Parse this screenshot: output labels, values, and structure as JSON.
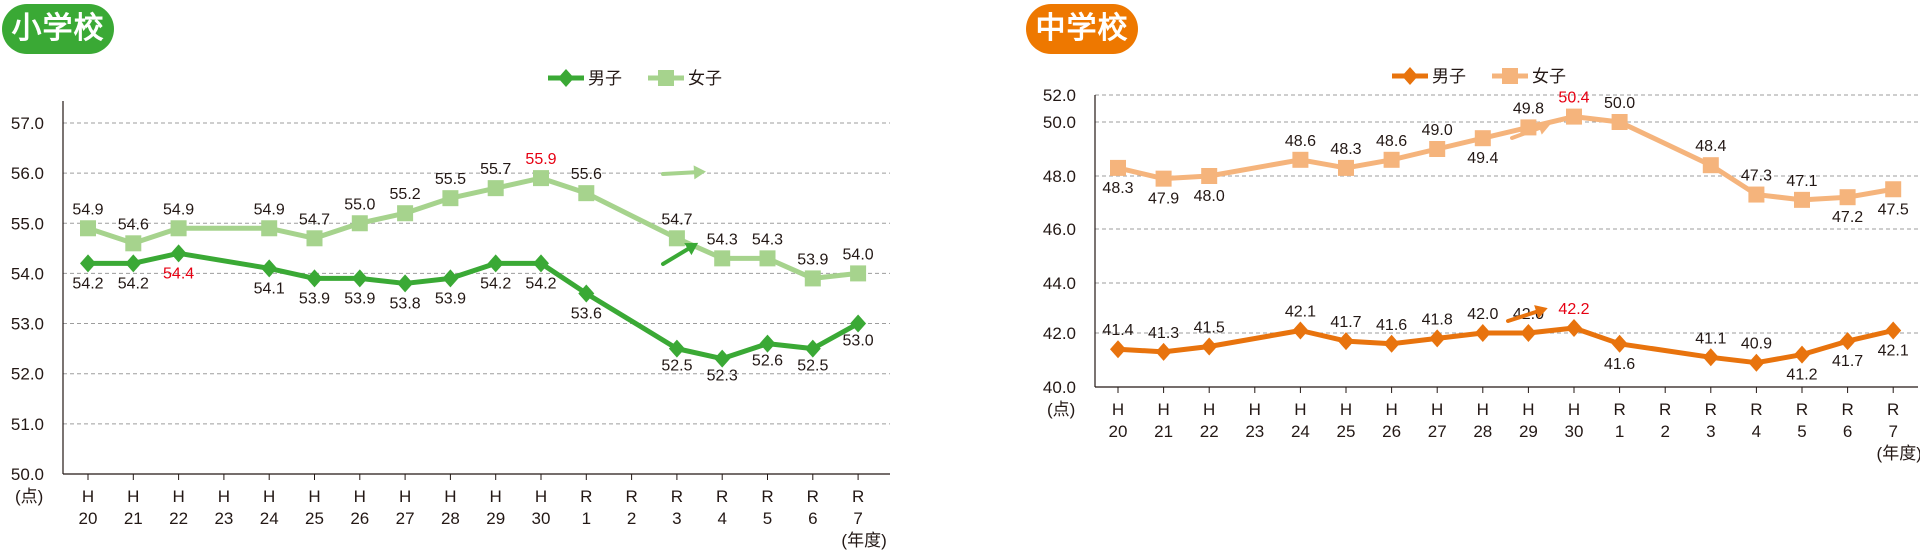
{
  "panels": [
    {
      "id": "elementary",
      "title": "小学校",
      "title_color": "#3aa935",
      "y_unit": "(点)",
      "x_unit": "(年度)",
      "legend": {
        "boys": "男子",
        "girls": "女子"
      },
      "colors": {
        "boys": "#3aa935",
        "girls": "#a6d38d"
      }
    },
    {
      "id": "junior_high",
      "title": "中学校",
      "title_color": "#ee7800",
      "y_unit": "(点)",
      "x_unit": "(年度)",
      "legend": {
        "boys": "男子",
        "girls": "女子"
      },
      "colors": {
        "boys": "#e8730d",
        "girls": "#f5b47c"
      }
    }
  ],
  "chart_data": [
    {
      "type": "line",
      "title": "小学校",
      "xlabel": "(年度)",
      "ylabel": "(点)",
      "categories": [
        "H20",
        "H21",
        "H22",
        "H23",
        "H24",
        "H25",
        "H26",
        "H27",
        "H28",
        "H29",
        "H30",
        "R1",
        "R2",
        "R3",
        "R4",
        "R5",
        "R6",
        "R7"
      ],
      "category_era": [
        "H",
        "H",
        "H",
        "H",
        "H",
        "H",
        "H",
        "H",
        "H",
        "H",
        "H",
        "R",
        "R",
        "R",
        "R",
        "R",
        "R",
        "R"
      ],
      "category_num": [
        "20",
        "21",
        "22",
        "23",
        "24",
        "25",
        "26",
        "27",
        "28",
        "29",
        "30",
        "1",
        "2",
        "3",
        "4",
        "5",
        "6",
        "7"
      ],
      "yticks": [
        "57.0",
        "56.0",
        "55.0",
        "54.0",
        "53.0",
        "52.0",
        "51.0",
        "50.0"
      ],
      "ylim": [
        50.0,
        57.0
      ],
      "grid": true,
      "legend_position": "top-right",
      "series": [
        {
          "name": "男子",
          "values": [
            54.2,
            54.2,
            54.4,
            null,
            54.1,
            53.9,
            53.9,
            53.8,
            53.9,
            54.2,
            54.2,
            53.6,
            null,
            52.5,
            52.3,
            52.6,
            52.5,
            53.0
          ],
          "highlight_index": 2
        },
        {
          "name": "女子",
          "values": [
            54.9,
            54.6,
            54.9,
            null,
            54.9,
            54.7,
            55.0,
            55.2,
            55.5,
            55.7,
            55.9,
            55.6,
            null,
            54.7,
            54.3,
            54.3,
            53.9,
            54.0
          ],
          "highlight_index": 10
        }
      ],
      "annotations": [
        "女子 R7: trend arrow flat (→)",
        "男子 R7: trend arrow up (↗)"
      ]
    },
    {
      "type": "line",
      "title": "中学校",
      "xlabel": "(年度)",
      "ylabel": "(点)",
      "categories": [
        "H20",
        "H21",
        "H22",
        "H23",
        "H24",
        "H25",
        "H26",
        "H27",
        "H28",
        "H29",
        "H30",
        "R1",
        "R2",
        "R3",
        "R4",
        "R5",
        "R6",
        "R7"
      ],
      "category_era": [
        "H",
        "H",
        "H",
        "H",
        "H",
        "H",
        "H",
        "H",
        "H",
        "H",
        "H",
        "R",
        "R",
        "R",
        "R",
        "R",
        "R",
        "R"
      ],
      "category_num": [
        "20",
        "21",
        "22",
        "23",
        "24",
        "25",
        "26",
        "27",
        "28",
        "29",
        "30",
        "1",
        "2",
        "3",
        "4",
        "5",
        "6",
        "7"
      ],
      "yticks": [
        "52.0",
        "50.0",
        "48.0",
        "46.0",
        "44.0",
        "42.0",
        "40.0"
      ],
      "ylim": [
        40.0,
        52.0
      ],
      "grid": true,
      "legend_position": "top-right",
      "series": [
        {
          "name": "男子",
          "values": [
            41.4,
            41.3,
            41.5,
            null,
            42.1,
            41.7,
            41.6,
            41.8,
            42.0,
            42.0,
            42.2,
            41.6,
            null,
            41.1,
            40.9,
            41.2,
            41.7,
            42.1
          ],
          "highlight_index": 10
        },
        {
          "name": "女子",
          "values": [
            48.3,
            47.9,
            48.0,
            null,
            48.6,
            48.3,
            48.6,
            49.0,
            49.4,
            49.8,
            50.4,
            50.0,
            null,
            48.4,
            47.3,
            47.1,
            47.2,
            47.5
          ],
          "highlight_index": 10
        }
      ],
      "annotations": [
        "女子 R7: trend arrow up (↗)",
        "男子 R7: trend arrow up (↗)"
      ]
    }
  ]
}
